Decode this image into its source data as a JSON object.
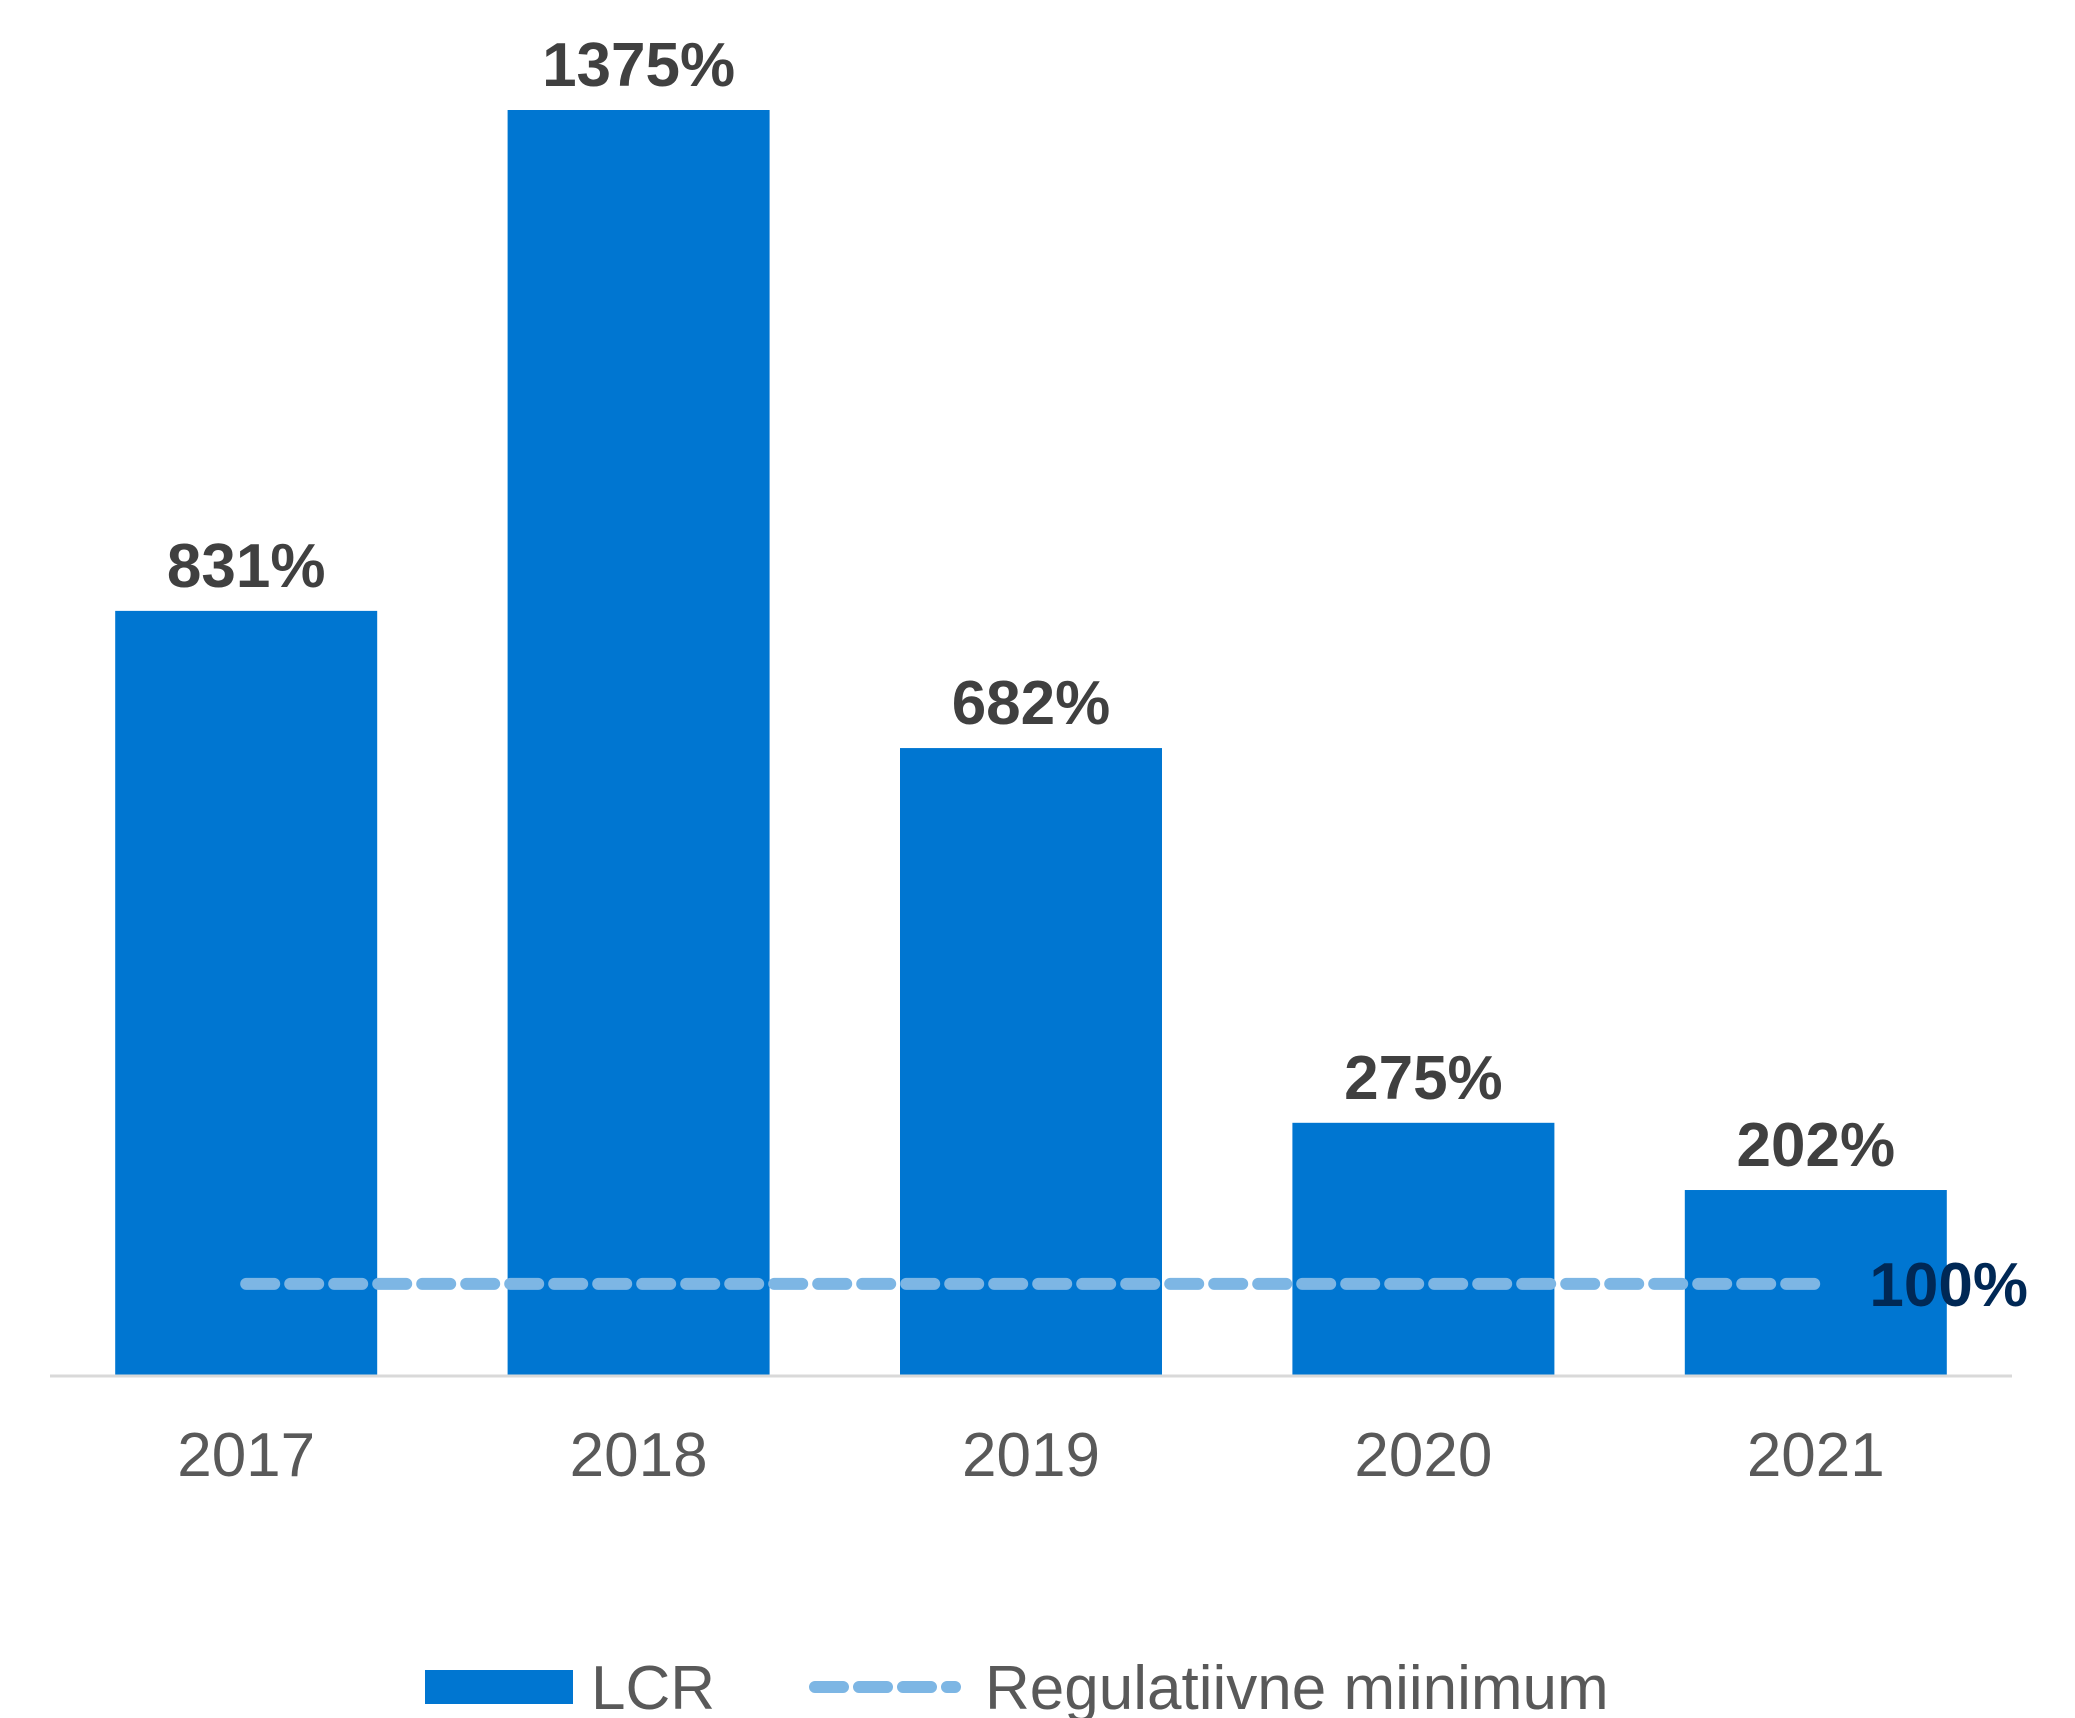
{
  "chart_data": {
    "type": "bar",
    "categories": [
      "2017",
      "2018",
      "2019",
      "2020",
      "2021"
    ],
    "series": [
      {
        "name": "LCR",
        "values": [
          831,
          1375,
          682,
          275,
          202
        ],
        "labels": [
          "831%",
          "1375%",
          "682%",
          "275%",
          "202%"
        ],
        "color": "#0076D1"
      }
    ],
    "reference_line": {
      "name": "Regulatiivne miinimum",
      "value": 100,
      "label": "100%",
      "color": "#7DB6E4",
      "style": "dashed"
    },
    "title": "",
    "xlabel": "",
    "ylabel": "",
    "ylim": [
      0,
      1375
    ],
    "grid": false,
    "legend": "bottom-center"
  },
  "legend": {
    "bar_label": "LCR",
    "line_label": "Regulatiivne miinimum"
  }
}
